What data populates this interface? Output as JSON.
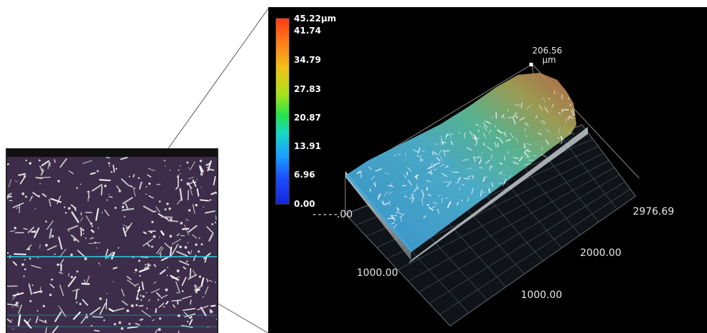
{
  "colorbar": {
    "labels": [
      "45.22µm",
      "41.74",
      "34.79",
      "27.83",
      "20.87",
      "13.91",
      "6.96",
      "0.00"
    ]
  },
  "axes": {
    "max_height_value": "206.56",
    "max_height_unit": "µm",
    "left_axis_tick": ".00",
    "x_axis_tick_1": "1000.00",
    "y_axis_tick_far": "2976.69",
    "y_axis_tick_mid": "2000.00",
    "y_axis_tick_near": "1000.00"
  },
  "colors": {
    "micrograph_bg": "#3d2d4a",
    "profile_line": "#2fd0e8",
    "panel_bg": "#000000"
  },
  "icons": [
    "profile-cursor-icon",
    "max-point-marker-icon"
  ]
}
